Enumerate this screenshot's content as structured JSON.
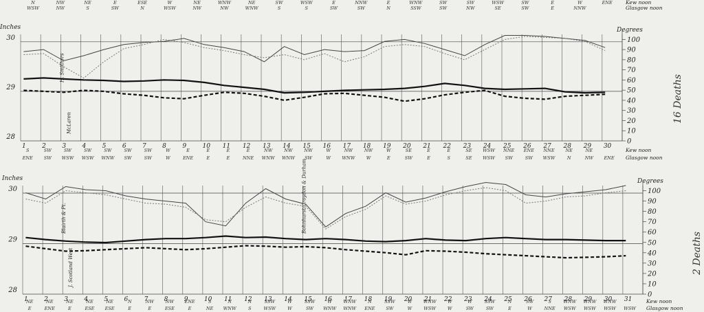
{
  "chart_data": [
    {
      "type": "line",
      "panel": "top",
      "left_axis": {
        "label": "Inches",
        "ticks": [
          "30",
          "29",
          "28"
        ],
        "range": [
          28,
          30.15
        ]
      },
      "right_axis": {
        "label": "Degrees",
        "ticks": [
          "100",
          "90",
          "80",
          "70",
          "60",
          "50",
          "40",
          "30",
          "20",
          "10",
          "0"
        ],
        "range": [
          0,
          105
        ]
      },
      "wind_top": {
        "kew": [
          "N",
          "WSW",
          "NW",
          "NW",
          "NE",
          "S",
          "E",
          "SW",
          "ESE",
          "N",
          "W",
          "WSW",
          "NE",
          "NW",
          "WNW",
          "NW",
          "NE",
          "WNW",
          "SW",
          "S",
          "WSW",
          "S",
          "E",
          "SW",
          "NNW",
          "SW",
          "E",
          "N",
          "WNW",
          "SSW",
          "SW",
          "SW",
          "SW",
          "NW",
          "WSW",
          "SE",
          "SW",
          "SW",
          "E",
          "E",
          "W",
          "NNW",
          "ENE"
        ],
        "end_labels": [
          "Kew noon",
          "Glasgow noon"
        ]
      },
      "days": [
        "1",
        "2",
        "3",
        "4",
        "5",
        "6",
        "7",
        "8",
        "9",
        "10",
        "11",
        "12",
        "13",
        "14",
        "15",
        "16",
        "17",
        "18",
        "19",
        "20",
        "21",
        "22",
        "23",
        "24",
        "25",
        "26",
        "27",
        "28",
        "29",
        "30"
      ],
      "wind_bottom": {
        "kew": [
          "S",
          "SW",
          "SW",
          "SW",
          "SW",
          "SW",
          "SW",
          "W",
          "E",
          "E",
          "E",
          "E",
          "NW",
          "NW",
          "NW",
          "W",
          "NW",
          "NW",
          "W",
          "SE",
          "E",
          "E",
          "SE",
          "WSW",
          "NNE",
          "ENE",
          "NNE",
          "NE",
          "NE"
        ],
        "glasgow": [
          "ENE",
          "SW",
          "WSW",
          "WSW",
          "WNW",
          "SW",
          "SW",
          "W",
          "ENE",
          "E",
          "E",
          "NNE",
          "WNW",
          "WNW",
          "SW",
          "W",
          "WNW",
          "W",
          "E",
          "SW",
          "E",
          "S",
          "SE",
          "WSW",
          "SW",
          "SW",
          "WSW",
          "N",
          "NW",
          "ENE"
        ],
        "end_labels": [
          "Kew noon",
          "Glasgow noon"
        ]
      },
      "annotations": [
        {
          "text": "H. Smithers",
          "day": 3
        },
        {
          "text": "McLaren",
          "day": 3
        }
      ],
      "side_note": "16 Deaths",
      "series": [
        {
          "style": "solid-thick",
          "axis": "left",
          "values": [
            29.25,
            29.27,
            29.25,
            29.23,
            29.22,
            29.2,
            29.21,
            29.23,
            29.22,
            29.18,
            29.12,
            29.08,
            29.04,
            28.97,
            28.98,
            29.0,
            29.02,
            29.03,
            29.04,
            29.06,
            29.1,
            29.16,
            29.12,
            29.06,
            29.04,
            29.05,
            29.06,
            28.99,
            28.97,
            28.98
          ]
        },
        {
          "style": "dashed-thick",
          "axis": "left",
          "values": [
            29.02,
            29.0,
            28.98,
            29.02,
            29.0,
            28.95,
            28.92,
            28.87,
            28.85,
            28.92,
            28.98,
            28.96,
            28.9,
            28.82,
            28.88,
            28.95,
            28.96,
            28.92,
            28.88,
            28.8,
            28.85,
            28.93,
            28.98,
            29.02,
            28.9,
            28.86,
            28.84,
            28.9,
            28.92,
            28.94
          ]
        },
        {
          "style": "thin-grey",
          "axis": "right",
          "values": [
            88,
            90,
            79,
            84,
            90,
            95,
            97,
            98,
            101,
            95,
            92,
            88,
            78,
            93,
            85,
            90,
            88,
            89,
            98,
            100,
            96,
            90,
            84,
            95,
            104,
            104,
            103,
            101,
            99,
            92
          ]
        },
        {
          "style": "dotted-grey",
          "axis": "right",
          "values": [
            85,
            86,
            73,
            62,
            78,
            91,
            95,
            100,
            97,
            92,
            89,
            85,
            82,
            85,
            80,
            86,
            78,
            83,
            93,
            95,
            93,
            86,
            80,
            90,
            100,
            103,
            102,
            101,
            98,
            89
          ]
        }
      ]
    },
    {
      "type": "line",
      "panel": "bottom",
      "left_axis": {
        "label": "Inches",
        "ticks": [
          "30",
          "29",
          "28"
        ],
        "range": [
          28,
          30.15
        ]
      },
      "right_axis": {
        "label": "Degrees",
        "ticks": [
          "100",
          "90",
          "80",
          "70",
          "60",
          "50",
          "40",
          "30",
          "20",
          "10",
          "0"
        ],
        "range": [
          0,
          105
        ]
      },
      "days": [
        "1",
        "2",
        "3",
        "4",
        "5",
        "6",
        "7",
        "8",
        "9",
        "10",
        "11",
        "12",
        "13",
        "14",
        "15",
        "16",
        "17",
        "18",
        "19",
        "20",
        "21",
        "22",
        "23",
        "24",
        "25",
        "26",
        "27",
        "28",
        "29",
        "30",
        "31"
      ],
      "wind_bottom": {
        "kew": [
          "NE",
          "NE",
          "NE",
          "NE",
          "NE",
          "N",
          "NW",
          "NW",
          "ENE",
          "S",
          "N",
          "N",
          "SSW",
          "W",
          "SSW",
          "W",
          "WNW",
          "N",
          "SSW",
          "W",
          "WNW",
          "W",
          "W",
          "SSW",
          "N",
          "SW",
          "S",
          "WNW",
          "WNW",
          "WNW"
        ],
        "glasgow": [
          "E",
          "ENE",
          "E",
          "ESE",
          "ESE",
          "E",
          "E",
          "ESE",
          "E",
          "NE",
          "WNW",
          "S",
          "WSW",
          "W",
          "SW",
          "WNW",
          "WNW",
          "ENE",
          "SW",
          "W",
          "WSW",
          "W",
          "SW",
          "SW",
          "E",
          "W",
          "NNE",
          "WSW",
          "WSW",
          "WSW",
          "WSW"
        ],
        "end_labels": [
          "Kew noon",
          "Glasgow noon"
        ]
      },
      "annotations": [
        {
          "text": "Blairth & Pt.",
          "day": 3
        },
        {
          "text": "J. Scotland West",
          "day": 3
        },
        {
          "text": "Bohnhurst/Croydon & Durham",
          "day": 15
        }
      ],
      "side_note": "2 Deaths",
      "series": [
        {
          "style": "solid-thick",
          "axis": "left",
          "values": [
            29.12,
            29.08,
            29.05,
            29.03,
            29.02,
            29.05,
            29.08,
            29.1,
            29.1,
            29.12,
            29.15,
            29.12,
            29.13,
            29.1,
            29.08,
            29.1,
            29.08,
            29.05,
            29.04,
            29.06,
            29.1,
            29.07,
            29.06,
            29.1,
            29.12,
            29.1,
            29.08,
            29.08,
            29.07,
            29.06,
            29.06
          ]
        },
        {
          "style": "dashed-thick",
          "axis": "left",
          "values": [
            28.95,
            28.9,
            28.85,
            28.86,
            28.88,
            28.9,
            28.92,
            28.9,
            28.88,
            28.9,
            28.93,
            28.96,
            28.95,
            28.93,
            28.94,
            28.92,
            28.88,
            28.85,
            28.82,
            28.78,
            28.86,
            28.85,
            28.83,
            28.8,
            28.78,
            28.76,
            28.74,
            28.72,
            28.73,
            28.74,
            28.76
          ]
        },
        {
          "style": "thin-grey",
          "axis": "right",
          "values": [
            98,
            92,
            104,
            101,
            100,
            95,
            92,
            90,
            88,
            70,
            66,
            88,
            102,
            92,
            87,
            65,
            78,
            85,
            98,
            89,
            93,
            99,
            104,
            108,
            106,
            96,
            94,
            97,
            99,
            101,
            105
          ]
        },
        {
          "style": "dotted-grey",
          "axis": "right",
          "values": [
            92,
            88,
            100,
            98,
            96,
            92,
            88,
            87,
            84,
            72,
            70,
            84,
            94,
            88,
            85,
            63,
            75,
            82,
            95,
            87,
            90,
            96,
            100,
            103,
            100,
            88,
            90,
            94,
            95,
            98,
            100
          ]
        }
      ]
    }
  ]
}
